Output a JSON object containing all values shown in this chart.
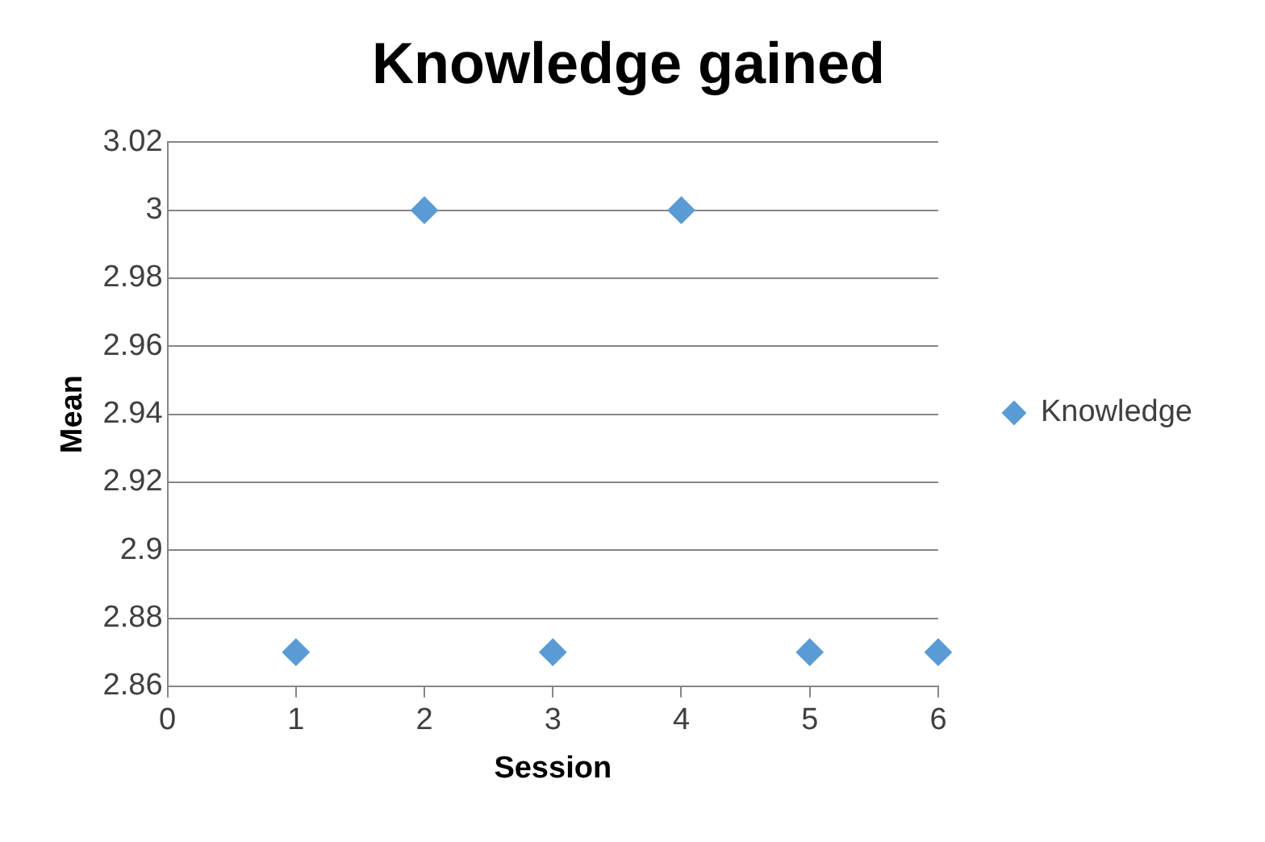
{
  "chart_data": {
    "type": "scatter",
    "title": "Knowledge gained",
    "xlabel": "Session",
    "ylabel": "Mean",
    "x": [
      1,
      2,
      3,
      4,
      5,
      6
    ],
    "series": [
      {
        "name": "Knowledge",
        "color": "#5b9bd5",
        "values": [
          2.87,
          3,
          2.87,
          3,
          2.87,
          2.87
        ]
      }
    ],
    "xlim": [
      0,
      6
    ],
    "xticks": [
      0,
      1,
      2,
      3,
      4,
      5,
      6
    ],
    "ylim": [
      2.86,
      3.02
    ],
    "yticks": [
      2.86,
      2.88,
      2.9,
      2.92,
      2.94,
      2.96,
      2.98,
      3,
      3.02
    ],
    "grid": "y",
    "legend": "right",
    "marker": "diamond"
  }
}
